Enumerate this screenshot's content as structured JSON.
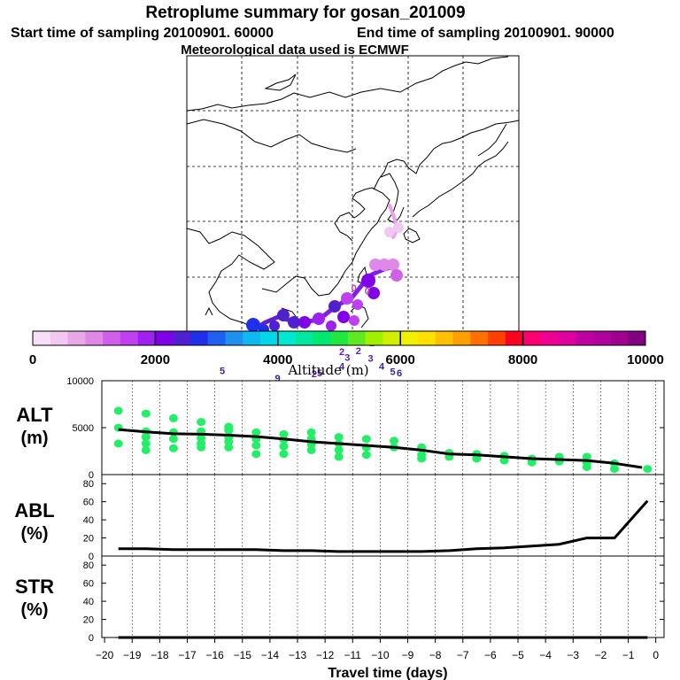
{
  "header": {
    "title": "Retroplume summary for gosan_201009",
    "start_time": "Start time of sampling 20100901. 60000",
    "end_time": "End time of sampling 20100901. 90000",
    "met_data": "Meteorological data used is ECMWF"
  },
  "colorbar": {
    "label": "Altitude (m)",
    "min": 0,
    "max": 10000,
    "tick_values": [
      0,
      2000,
      4000,
      6000,
      8000,
      10000
    ],
    "colors": [
      "#f7e0f7",
      "#f0c8f0",
      "#e8a8e8",
      "#e088e8",
      "#d060e8",
      "#c040f0",
      "#a020f0",
      "#8000e8",
      "#5020d0",
      "#2030e8",
      "#2060f0",
      "#2090f0",
      "#10b8f0",
      "#00d8e8",
      "#00e8d0",
      "#00e8a0",
      "#00e870",
      "#20e840",
      "#60e820",
      "#a0f000",
      "#d0f000",
      "#f0f000",
      "#ffe000",
      "#ffc000",
      "#ffa000",
      "#ff7000",
      "#ff4000",
      "#ff0020",
      "#ff0070",
      "#f00090",
      "#e000a0",
      "#c000a0",
      "#b000a0",
      "#a00090",
      "#800080"
    ],
    "major_every": 7
  },
  "map": {
    "trajectory_colors": {
      "path_light": "#e8a0ec",
      "path_dark": "#8020e0",
      "label_color": "#a000c0"
    },
    "day_labels": [
      {
        "text": "0",
        "lat": 33.4,
        "lon": 126.3,
        "color": "#c040c0"
      },
      {
        "text": "0",
        "lat": 33.7,
        "lon": 125.1,
        "color": "#c040c0"
      },
      {
        "text": "1",
        "lat": 28.9,
        "lon": 124.0,
        "color": "#a020c0"
      },
      {
        "text": "1",
        "lat": 28.9,
        "lon": 124.6,
        "color": "#a020c0"
      },
      {
        "text": "1",
        "lat": 28.9,
        "lon": 125.2,
        "color": "#a020c0"
      },
      {
        "text": "1",
        "lat": 28.7,
        "lon": 126.7,
        "color": "#a020c0"
      },
      {
        "text": "1",
        "lat": 29.0,
        "lon": 128.3,
        "color": "#a020c0"
      },
      {
        "text": "2",
        "lat": 27.9,
        "lon": 124.0,
        "color": "#6020c0"
      },
      {
        "text": "2",
        "lat": 28.0,
        "lon": 125.5,
        "color": "#6020c0"
      },
      {
        "text": "2",
        "lat": 25.9,
        "lon": 121.5,
        "color": "#6020c0"
      },
      {
        "text": "3",
        "lat": 27.4,
        "lon": 124.5,
        "color": "#5020b0"
      },
      {
        "text": "3",
        "lat": 27.3,
        "lon": 126.6,
        "color": "#5020b0"
      },
      {
        "text": "3",
        "lat": 24.0,
        "lon": 120.9,
        "color": "#5020b0"
      },
      {
        "text": "4",
        "lat": 26.6,
        "lon": 124.0,
        "color": "#4020a0"
      },
      {
        "text": "4",
        "lat": 26.6,
        "lon": 127.6,
        "color": "#4020a0"
      },
      {
        "text": "4",
        "lat": 23.9,
        "lon": 122.5,
        "color": "#4020a0"
      },
      {
        "text": "5",
        "lat": 26.0,
        "lon": 122.0,
        "color": "#4020a0"
      },
      {
        "text": "5",
        "lat": 26.1,
        "lon": 128.6,
        "color": "#4020a0"
      },
      {
        "text": "5",
        "lat": 26.2,
        "lon": 113.2,
        "color": "#4020a0"
      },
      {
        "text": "6",
        "lat": 26.0,
        "lon": 129.2,
        "color": "#3020a0"
      },
      {
        "text": "6",
        "lat": 24.6,
        "lon": 114.6,
        "color": "#3020a0"
      },
      {
        "text": "9",
        "lat": 25.5,
        "lon": 118.2,
        "color": "#3020a0"
      }
    ]
  },
  "panels": {
    "alt": {
      "label_main": "ALT",
      "label_unit": "(m)",
      "ylim": [
        0,
        10000
      ],
      "yticks": [
        0,
        5000,
        10000
      ]
    },
    "abl": {
      "label_main": "ABL",
      "label_unit": "(%)",
      "ylim": [
        0,
        90
      ],
      "yticks": [
        0,
        20,
        40,
        60,
        80
      ]
    },
    "str": {
      "label_main": "STR",
      "label_unit": "(%)",
      "ylim": [
        0,
        90
      ],
      "yticks": [
        0,
        20,
        40,
        60,
        80
      ]
    }
  },
  "xaxis": {
    "label": "Travel time (days)",
    "xlim": [
      -20.1,
      0.3
    ],
    "ticks": [
      -20,
      -19,
      -18,
      -17,
      -16,
      -15,
      -14,
      -13,
      -12,
      -11,
      -10,
      -9,
      -8,
      -7,
      -6,
      -5,
      -4,
      -3,
      -2,
      -1,
      0
    ],
    "tick_labels": [
      "−20",
      "−19",
      "−18",
      "−17",
      "−16",
      "−15",
      "−14",
      "−13",
      "−12",
      "−11",
      "−10",
      "−9",
      "−8",
      "−7",
      "−6",
      "−5",
      "−4",
      "−3",
      "−2",
      "−1",
      "0"
    ]
  },
  "chart_data": [
    {
      "type": "line",
      "title": "ALT (m)",
      "xlabel": "Travel time (days)",
      "ylabel": "ALT (m)",
      "ylim": [
        0,
        10000
      ],
      "series": [
        {
          "name": "mean altitude",
          "x": [
            -19.5,
            -18.5,
            -17.5,
            -16.5,
            -15.5,
            -14.5,
            -13.5,
            -12.5,
            -11.5,
            -10.5,
            -9.5,
            -8.5,
            -7.5,
            -6.5,
            -5.5,
            -4.5,
            -3.5,
            -2.5,
            -1.5,
            -0.5
          ],
          "values": [
            4800,
            4550,
            4350,
            4300,
            4200,
            4050,
            3800,
            3500,
            3300,
            3100,
            2900,
            2600,
            2200,
            2100,
            1900,
            1700,
            1600,
            1500,
            1200,
            750
          ]
        }
      ],
      "scatter": {
        "name": "cluster altitudes",
        "points": [
          [
            -19.5,
            6800
          ],
          [
            -19.5,
            5000
          ],
          [
            -19.5,
            3300
          ],
          [
            -18.5,
            6500
          ],
          [
            -18.5,
            4600
          ],
          [
            -18.5,
            4000
          ],
          [
            -18.5,
            3300
          ],
          [
            -18.5,
            2600
          ],
          [
            -17.5,
            6000
          ],
          [
            -17.5,
            4500
          ],
          [
            -17.5,
            3800
          ],
          [
            -17.5,
            2800
          ],
          [
            -16.5,
            5600
          ],
          [
            -16.5,
            4600
          ],
          [
            -16.5,
            3900
          ],
          [
            -16.5,
            3300
          ],
          [
            -16.5,
            2900
          ],
          [
            -15.5,
            5100
          ],
          [
            -15.5,
            4700
          ],
          [
            -15.5,
            4000
          ],
          [
            -15.5,
            3500
          ],
          [
            -15.5,
            2900
          ],
          [
            -14.5,
            4500
          ],
          [
            -14.5,
            3800
          ],
          [
            -14.5,
            3100
          ],
          [
            -14.5,
            2200
          ],
          [
            -13.5,
            4300
          ],
          [
            -13.5,
            3700
          ],
          [
            -13.5,
            3000
          ],
          [
            -13.5,
            2200
          ],
          [
            -12.5,
            4500
          ],
          [
            -12.5,
            3800
          ],
          [
            -12.5,
            3200
          ],
          [
            -12.5,
            2600
          ],
          [
            -11.5,
            4000
          ],
          [
            -11.5,
            3300
          ],
          [
            -11.5,
            2600
          ],
          [
            -11.5,
            1900
          ],
          [
            -10.5,
            3800
          ],
          [
            -10.5,
            2900
          ],
          [
            -10.5,
            2100
          ],
          [
            -9.5,
            3600
          ],
          [
            -9.5,
            2900
          ],
          [
            -8.5,
            2900
          ],
          [
            -8.5,
            2100
          ],
          [
            -8.5,
            1700
          ],
          [
            -7.5,
            2300
          ],
          [
            -7.5,
            1900
          ],
          [
            -6.5,
            2200
          ],
          [
            -6.5,
            1700
          ],
          [
            -5.5,
            2000
          ],
          [
            -5.5,
            1500
          ],
          [
            -4.5,
            1700
          ],
          [
            -4.5,
            1300
          ],
          [
            -3.5,
            1900
          ],
          [
            -3.5,
            1400
          ],
          [
            -2.5,
            1900
          ],
          [
            -2.5,
            1300
          ],
          [
            -2.5,
            800
          ],
          [
            -1.5,
            1200
          ],
          [
            -1.5,
            600
          ],
          [
            -0.3,
            600
          ]
        ]
      }
    },
    {
      "type": "line",
      "title": "ABL (%)",
      "xlabel": "Travel time (days)",
      "ylabel": "ABL (%)",
      "ylim": [
        0,
        90
      ],
      "series": [
        {
          "name": "ABL fraction",
          "x": [
            -19.5,
            -18.5,
            -17.5,
            -16.5,
            -15.5,
            -14.5,
            -13.5,
            -12.5,
            -11.5,
            -10.5,
            -9.5,
            -8.5,
            -7.5,
            -6.5,
            -5.5,
            -4.5,
            -3.5,
            -2.5,
            -1.5,
            -0.3
          ],
          "values": [
            8,
            8,
            7,
            7,
            7,
            7,
            6,
            6,
            5,
            5,
            5,
            5,
            6,
            8,
            9,
            11,
            13,
            20,
            20,
            61
          ]
        }
      ]
    },
    {
      "type": "line",
      "title": "STR (%)",
      "xlabel": "Travel time (days)",
      "ylabel": "STR (%)",
      "ylim": [
        0,
        90
      ],
      "series": [
        {
          "name": "STR fraction",
          "x": [
            -19.5,
            -0.3
          ],
          "values": [
            0,
            0
          ]
        }
      ]
    }
  ]
}
